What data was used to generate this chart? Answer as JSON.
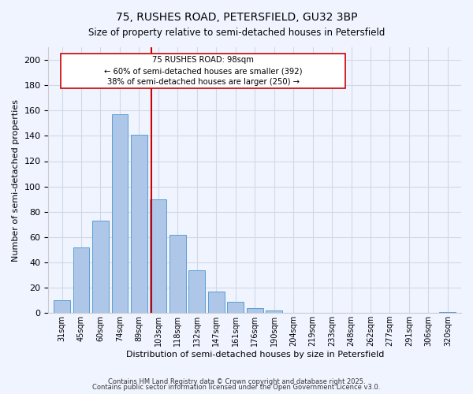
{
  "title_line1": "75, RUSHES ROAD, PETERSFIELD, GU32 3BP",
  "title_line2": "Size of property relative to semi-detached houses in Petersfield",
  "xlabel": "Distribution of semi-detached houses by size in Petersfield",
  "ylabel": "Number of semi-detached properties",
  "bar_labels": [
    "31sqm",
    "45sqm",
    "60sqm",
    "74sqm",
    "89sqm",
    "103sqm",
    "118sqm",
    "132sqm",
    "147sqm",
    "161sqm",
    "176sqm",
    "190sqm",
    "204sqm",
    "219sqm",
    "233sqm",
    "248sqm",
    "262sqm",
    "277sqm",
    "291sqm",
    "306sqm",
    "320sqm"
  ],
  "bar_values": [
    10,
    52,
    73,
    157,
    141,
    90,
    62,
    34,
    17,
    9,
    4,
    2,
    0,
    0,
    0,
    0,
    0,
    0,
    0,
    0,
    1
  ],
  "bar_color": "#aec6e8",
  "bar_edge_color": "#5a9fd4",
  "vline_x": 4.65,
  "vline_color": "#cc0000",
  "annotation_title": "75 RUSHES ROAD: 98sqm",
  "annotation_left": "← 60% of semi-detached houses are smaller (392)",
  "annotation_right": "38% of semi-detached houses are larger (250) →",
  "annotation_box_color": "#ffffff",
  "annotation_box_edge": "#cc0000",
  "ylim": [
    0,
    210
  ],
  "yticks": [
    0,
    20,
    40,
    60,
    80,
    100,
    120,
    140,
    160,
    180,
    200
  ],
  "grid_color": "#d0d8e8",
  "background_color": "#f0f4ff",
  "footer1": "Contains HM Land Registry data © Crown copyright and database right 2025.",
  "footer2": "Contains public sector information licensed under the Open Government Licence v3.0."
}
